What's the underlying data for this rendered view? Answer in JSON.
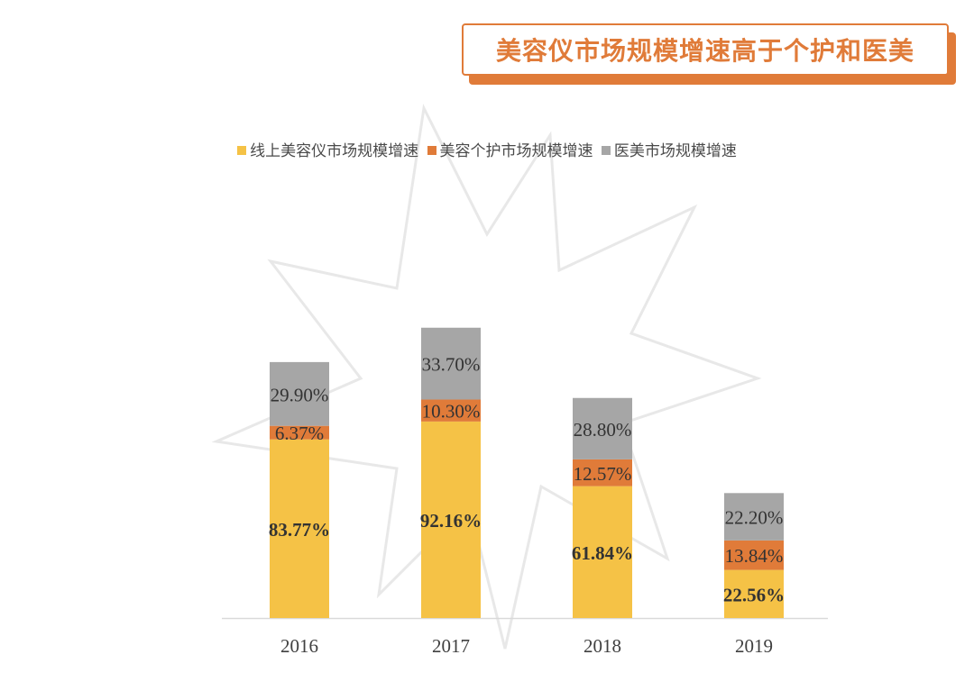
{
  "title": "美容仪市场规模增速高于个护和医美",
  "colors": {
    "accent": "#e07b39",
    "series_online": "#f5c246",
    "series_personal_care": "#e07b39",
    "series_medical": "#a6a6a6"
  },
  "legend": [
    {
      "label": "线上美容仪市场规模增速",
      "color": "#f5c246"
    },
    {
      "label": "美容个护市场规模增速",
      "color": "#e07b39"
    },
    {
      "label": "医美市场规模增速",
      "color": "#a6a6a6"
    }
  ],
  "chart_data": {
    "type": "bar",
    "stacked": true,
    "categories": [
      "2016",
      "2017",
      "2018",
      "2019"
    ],
    "series": [
      {
        "name": "线上美容仪市场规模增速",
        "values": [
          83.77,
          92.16,
          61.84,
          22.56
        ],
        "labels": [
          "83.77%",
          "92.16%",
          "61.84%",
          "22.56%"
        ]
      },
      {
        "name": "美容个护市场规模增速",
        "values": [
          6.37,
          10.3,
          12.57,
          13.84
        ],
        "labels": [
          "6.37%",
          "10.30%",
          "12.57%",
          "13.84%"
        ]
      },
      {
        "name": "医美市场规模增速",
        "values": [
          29.9,
          33.7,
          28.8,
          22.2
        ],
        "labels": [
          "29.90%",
          "33.70%",
          "28.80%",
          "22.20%"
        ]
      }
    ],
    "ylim": [
      0,
      160
    ],
    "grid": false,
    "legend_position": "top"
  }
}
